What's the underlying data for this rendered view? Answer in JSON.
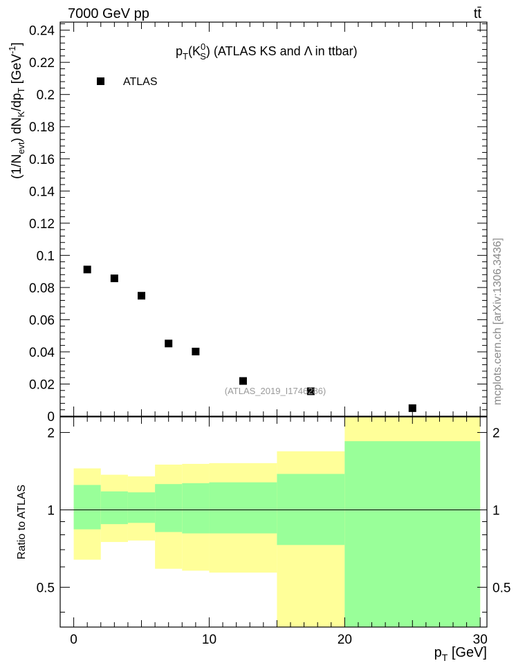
{
  "header": {
    "left": "7000 GeV pp",
    "right": "tt̄"
  },
  "side_label": "mcplots.cern.ch [arXiv:1306.3436]",
  "watermark": "(ATLAS_2019_I1746286)",
  "chart_data": [
    {
      "type": "scatter",
      "title_main": "p",
      "title_sub": "T",
      "title_paren": "(K",
      "title_sup": "0",
      "title_sub2": "S",
      "title_rest": ") (ATLAS KS and Λ in ttbar)",
      "ylabel": "(1/N_evt) dN_K/dp_T [GeV^-1]",
      "ylim": [
        0,
        0.245
      ],
      "xlim": [
        -1,
        30.5
      ],
      "yticks": [
        "0",
        "0.02",
        "0.04",
        "0.06",
        "0.08",
        "0.1",
        "0.12",
        "0.14",
        "0.16",
        "0.18",
        "0.2",
        "0.22",
        "0.24"
      ],
      "legend": "ATLAS",
      "series": [
        {
          "name": "ATLAS",
          "color": "#000000",
          "points": [
            {
              "x": 1,
              "y": 0.0912
            },
            {
              "x": 3,
              "y": 0.0857
            },
            {
              "x": 5,
              "y": 0.0749
            },
            {
              "x": 7,
              "y": 0.0452
            },
            {
              "x": 9,
              "y": 0.0402
            },
            {
              "x": 12.5,
              "y": 0.0219
            },
            {
              "x": 17.5,
              "y": 0.0155
            },
            {
              "x": 25,
              "y": 0.005
            }
          ]
        }
      ]
    },
    {
      "type": "area",
      "ylabel": "Ratio to ATLAS",
      "xlabel": "p_T [GeV]",
      "xlim": [
        -1,
        30.5
      ],
      "ylim": [
        0.35,
        2.3
      ],
      "xticks": [
        "0",
        "10",
        "20",
        "30"
      ],
      "yticks": [
        "0.5",
        "1",
        "2"
      ],
      "reference_line": 1,
      "colors": {
        "yellow_band": "#ffff99",
        "green_band": "#99ff99"
      },
      "bins": [
        {
          "x0": 0,
          "x1": 2,
          "y_lo": 0.64,
          "y_hi": 1.45,
          "g_lo": 0.84,
          "g_hi": 1.25
        },
        {
          "x0": 2,
          "x1": 4,
          "y_lo": 0.75,
          "y_hi": 1.37,
          "g_lo": 0.88,
          "g_hi": 1.18
        },
        {
          "x0": 4,
          "x1": 6,
          "y_lo": 0.76,
          "y_hi": 1.35,
          "g_lo": 0.89,
          "g_hi": 1.17
        },
        {
          "x0": 6,
          "x1": 8,
          "y_lo": 0.59,
          "y_hi": 1.5,
          "g_lo": 0.82,
          "g_hi": 1.26
        },
        {
          "x0": 8,
          "x1": 10,
          "y_lo": 0.58,
          "y_hi": 1.51,
          "g_lo": 0.81,
          "g_hi": 1.27
        },
        {
          "x0": 10,
          "x1": 15,
          "y_lo": 0.57,
          "y_hi": 1.52,
          "g_lo": 0.81,
          "g_hi": 1.28
        },
        {
          "x0": 15,
          "x1": 20,
          "y_lo": 0.35,
          "y_hi": 1.69,
          "g_lo": 0.73,
          "g_hi": 1.38
        },
        {
          "x0": 20,
          "x1": 30,
          "y_lo": 0.35,
          "y_hi": 2.3,
          "g_lo": 0.35,
          "g_hi": 1.85
        }
      ]
    }
  ]
}
